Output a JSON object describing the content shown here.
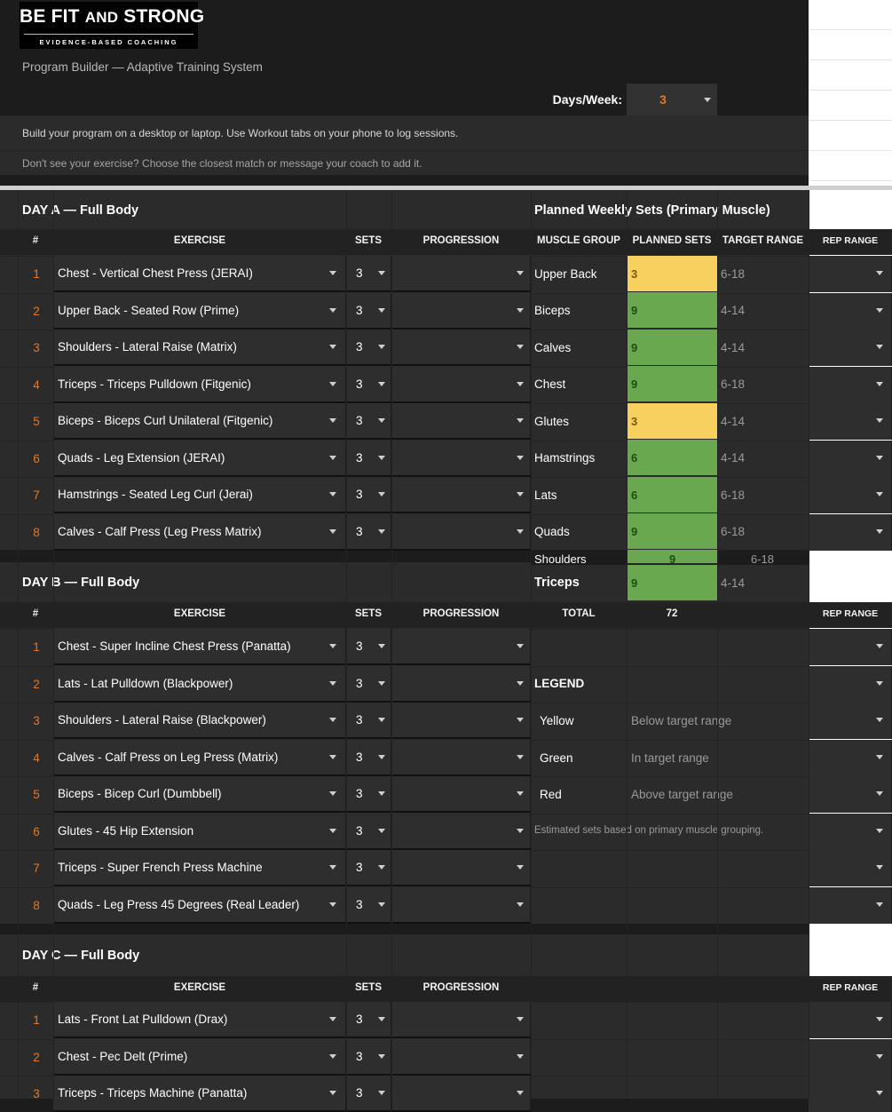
{
  "logo": {
    "line1": "BE FIT",
    "line2": "AND",
    "line3": "STRONG",
    "tagline": "EVIDENCE-BASED COACHING"
  },
  "subtitle": "Program Builder — Adaptive Training System",
  "days_week": {
    "label": "Days/Week:",
    "value": "3"
  },
  "notes": [
    "Build your program on a desktop or laptop. Use Workout tabs on your phone to log sessions.",
    "Don't see your exercise? Choose the closest match or message your coach to add it."
  ],
  "columns": {
    "num": "#",
    "exercise": "EXERCISE",
    "sets": "SETS",
    "progression": "PROGRESSION",
    "rep_range": "REP RANGE"
  },
  "days": [
    {
      "title": "DAY A  —  Full Body",
      "exercises": [
        {
          "n": "1",
          "name": "Chest - Vertical Chest Press (JERAI)",
          "sets": "3"
        },
        {
          "n": "2",
          "name": "Upper Back - Seated Row (Prime)",
          "sets": "3"
        },
        {
          "n": "3",
          "name": "Shoulders - Lateral Raise (Matrix)",
          "sets": "3"
        },
        {
          "n": "4",
          "name": "Triceps - Triceps Pulldown (Fitgenic)",
          "sets": "3"
        },
        {
          "n": "5",
          "name": "Biceps - Biceps Curl Unilateral (Fitgenic)",
          "sets": "3"
        },
        {
          "n": "6",
          "name": "Quads - Leg Extension (JERAI)",
          "sets": "3"
        },
        {
          "n": "7",
          "name": "Hamstrings - Seated Leg Curl (Jerai)",
          "sets": "3"
        },
        {
          "n": "8",
          "name": "Calves - Calf Press (Leg Press Matrix)",
          "sets": "3"
        }
      ]
    },
    {
      "title": "DAY B  —  Full Body",
      "exercises": [
        {
          "n": "1",
          "name": "Chest - Super Incline Chest Press (Panatta)",
          "sets": "3"
        },
        {
          "n": "2",
          "name": "Lats - Lat Pulldown (Blackpower)",
          "sets": "3"
        },
        {
          "n": "3",
          "name": "Shoulders - Lateral Raise (Blackpower)",
          "sets": "3"
        },
        {
          "n": "4",
          "name": "Calves - Calf Press on Leg Press (Matrix)",
          "sets": "3"
        },
        {
          "n": "5",
          "name": "Biceps - Bicep Curl (Dumbbell)",
          "sets": "3"
        },
        {
          "n": "6",
          "name": "Glutes - 45 Hip Extension",
          "sets": "3"
        },
        {
          "n": "7",
          "name": "Triceps - Super French Press Machine",
          "sets": "3"
        },
        {
          "n": "8",
          "name": "Quads - Leg Press 45 Degrees (Real Leader)",
          "sets": "3"
        }
      ]
    },
    {
      "title": "DAY C  —  Full Body",
      "exercises": [
        {
          "n": "1",
          "name": "Lats - Front Lat Pulldown (Drax)",
          "sets": "3"
        },
        {
          "n": "2",
          "name": "Chest - Pec Delt (Prime)",
          "sets": "3"
        },
        {
          "n": "3",
          "name": "Triceps - Triceps Machine (Panatta)",
          "sets": "3"
        }
      ]
    }
  ],
  "weekly": {
    "title": "Planned Weekly Sets (Primary Muscle)",
    "headers": {
      "muscle": "MUSCLE GROUP",
      "planned": "PLANNED SETS",
      "target": "TARGET RANGE"
    },
    "rows": [
      {
        "muscle": "Upper Back",
        "planned": "3",
        "target": "6-18",
        "status": "yellow"
      },
      {
        "muscle": "Biceps",
        "planned": "9",
        "target": "4-14",
        "status": "green"
      },
      {
        "muscle": "Calves",
        "planned": "9",
        "target": "4-14",
        "status": "green"
      },
      {
        "muscle": "Chest",
        "planned": "9",
        "target": "6-18",
        "status": "green"
      },
      {
        "muscle": "Glutes",
        "planned": "3",
        "target": "4-14",
        "status": "yellow"
      },
      {
        "muscle": "Hamstrings",
        "planned": "6",
        "target": "4-14",
        "status": "green"
      },
      {
        "muscle": "Lats",
        "planned": "6",
        "target": "6-18",
        "status": "green"
      },
      {
        "muscle": "Quads",
        "planned": "9",
        "target": "6-18",
        "status": "green"
      },
      {
        "muscle": "Shoulders",
        "planned": "9",
        "target": "6-18",
        "status": "green"
      },
      {
        "muscle": "Triceps",
        "planned": "9",
        "target": "4-14",
        "status": "green"
      }
    ],
    "total_label": "TOTAL",
    "total_value": "72",
    "legend_title": "LEGEND",
    "legend": [
      {
        "color": "Yellow",
        "desc": "Below target range"
      },
      {
        "color": "Green",
        "desc": "In target range"
      },
      {
        "color": "Red",
        "desc": "Above target range"
      }
    ],
    "footnote": "Estimated sets based on primary muscle grouping."
  },
  "colors": {
    "accent": "#e87722",
    "yellow": "#f7d060",
    "green": "#6aa84f"
  }
}
